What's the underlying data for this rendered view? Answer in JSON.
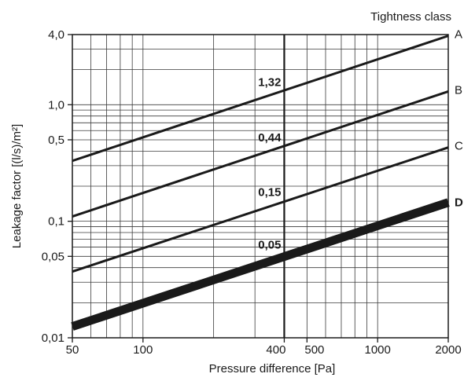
{
  "chart_data": {
    "type": "line",
    "xlabel": "Pressure difference [Pa]",
    "ylabel": "Leakage factor [(l/s)/m²]",
    "legend_title": "Tightness class",
    "x_scale": "log",
    "y_scale": "log",
    "xlim": [
      50,
      2000
    ],
    "ylim": [
      0.01,
      4.0
    ],
    "grid": true,
    "x_ticks": [
      {
        "value": 50,
        "label": "50"
      },
      {
        "value": 100,
        "label": "100"
      },
      {
        "value": 400,
        "label": "400"
      },
      {
        "value": 500,
        "label": "500"
      },
      {
        "value": 1000,
        "label": "1000"
      },
      {
        "value": 2000,
        "label": "2000"
      }
    ],
    "y_ticks": [
      {
        "value": 0.01,
        "label": "0,01"
      },
      {
        "value": 0.05,
        "label": "0,05"
      },
      {
        "value": 0.1,
        "label": "0,1"
      },
      {
        "value": 0.5,
        "label": "0,5"
      },
      {
        "value": 1.0,
        "label": "1,0"
      },
      {
        "value": 4.0,
        "label": "4,0"
      }
    ],
    "reference_x": 400,
    "series": [
      {
        "name": "A",
        "bold_label": false,
        "weight": "normal",
        "x": [
          50,
          2000
        ],
        "y": [
          0.33,
          3.9
        ],
        "value_at_400": 1.32,
        "value_label": "1,32"
      },
      {
        "name": "B",
        "bold_label": false,
        "weight": "normal",
        "x": [
          50,
          2000
        ],
        "y": [
          0.11,
          1.3
        ],
        "value_at_400": 0.44,
        "value_label": "0,44"
      },
      {
        "name": "C",
        "bold_label": false,
        "weight": "normal",
        "x": [
          50,
          2000
        ],
        "y": [
          0.037,
          0.43
        ],
        "value_at_400": 0.15,
        "value_label": "0,15"
      },
      {
        "name": "D",
        "bold_label": true,
        "weight": "heavy",
        "x": [
          50,
          2000
        ],
        "y": [
          0.0125,
          0.145
        ],
        "value_at_400": 0.05,
        "value_label": "0,05"
      }
    ]
  }
}
